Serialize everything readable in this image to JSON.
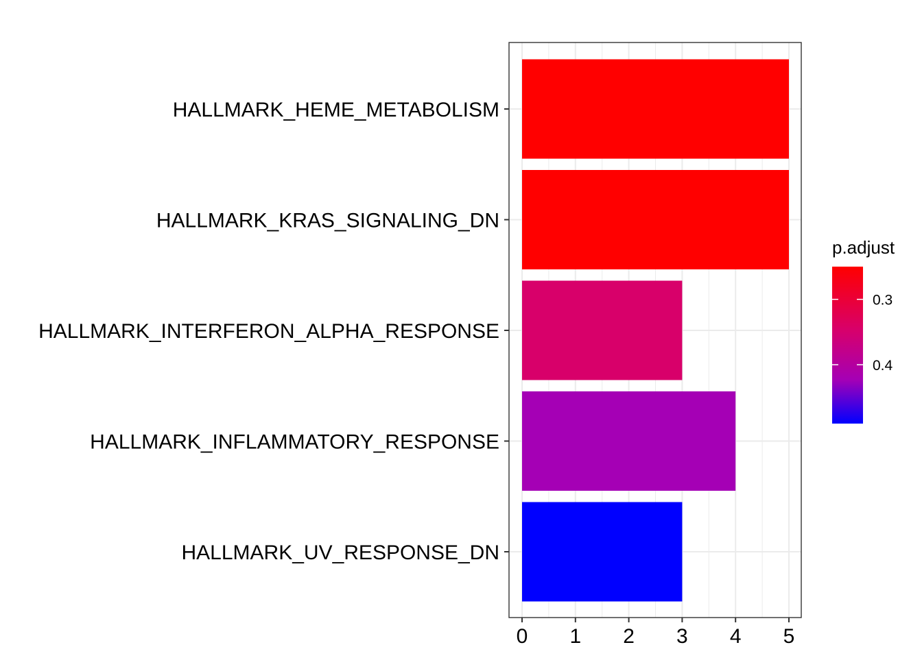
{
  "chart_data": {
    "type": "bar",
    "orientation": "horizontal",
    "title": "",
    "xlabel": "",
    "ylabel": "",
    "categories": [
      "HALLMARK_HEME_METABOLISM",
      "HALLMARK_KRAS_SIGNALING_DN",
      "HALLMARK_INTERFERON_ALPHA_RESPONSE",
      "HALLMARK_INFLAMMATORY_RESPONSE",
      "HALLMARK_UV_RESPONSE_DN"
    ],
    "values": [
      5,
      5,
      3,
      4,
      3
    ],
    "p_adjust": [
      0.25,
      0.25,
      0.32,
      0.4,
      0.49
    ],
    "bar_colors": [
      "#ff0000",
      "#ff0000",
      "#d8006a",
      "#a500b5",
      "#0000ff"
    ],
    "xlim": [
      0,
      5
    ],
    "x_ticks": [
      "0",
      "1",
      "2",
      "3",
      "4",
      "5"
    ],
    "grid": true,
    "legend": {
      "title": "p.adjust",
      "placement": "right",
      "ticks": [
        "0.3",
        "0.4"
      ],
      "tick_values": [
        0.3,
        0.4
      ],
      "range": [
        0.25,
        0.49
      ],
      "color_low_value": "#ff0000",
      "color_high_value": "#0000ff"
    }
  }
}
